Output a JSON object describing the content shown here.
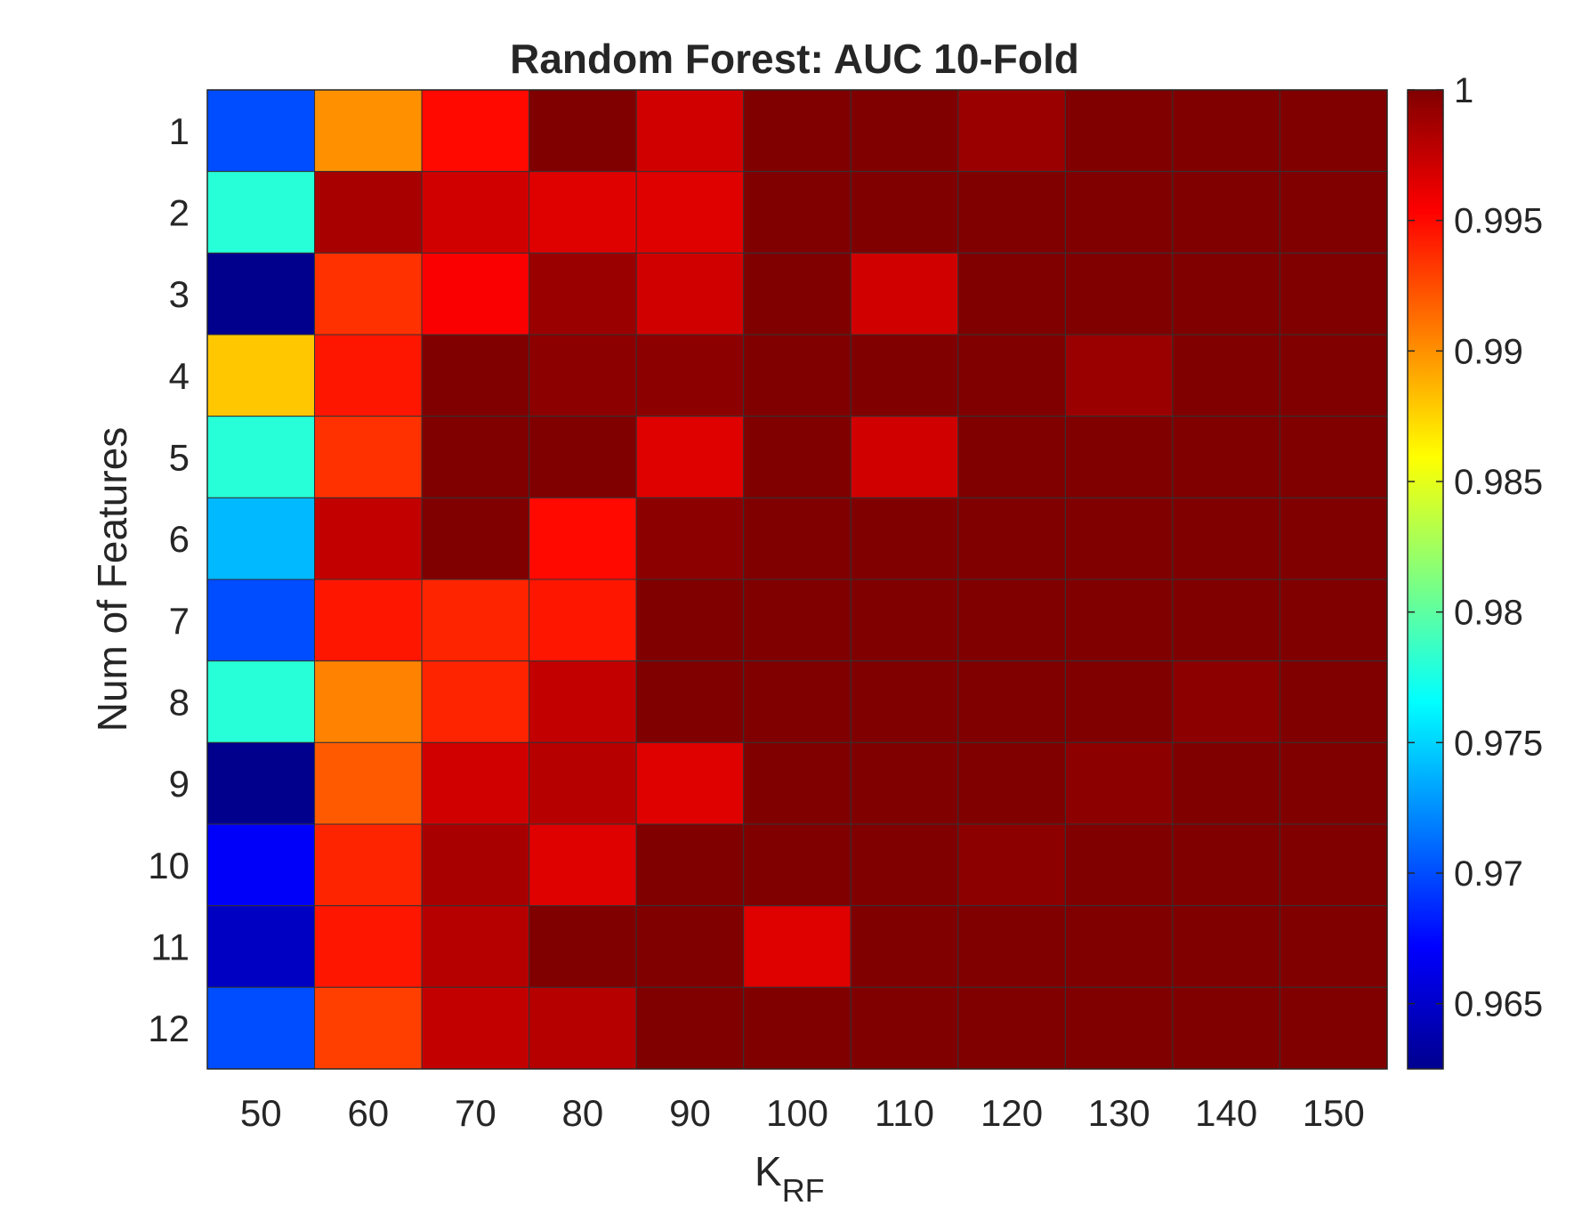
{
  "chart_data": {
    "type": "heatmap",
    "title": "Random Forest: AUC 10-Fold",
    "xlabel_main": "K",
    "xlabel_sub": "RF",
    "ylabel": "Num of Features",
    "x": [
      "50",
      "60",
      "70",
      "80",
      "90",
      "100",
      "110",
      "120",
      "130",
      "140",
      "150"
    ],
    "y": [
      "1",
      "2",
      "3",
      "4",
      "5",
      "6",
      "7",
      "8",
      "9",
      "10",
      "11",
      "12"
    ],
    "values": [
      [
        0.97,
        0.99,
        0.995,
        1.0,
        0.997,
        1.0,
        1.0,
        0.999,
        1.0,
        1.0,
        1.0
      ],
      [
        0.978,
        0.9985,
        0.997,
        0.9965,
        0.9965,
        1.0,
        1.0,
        1.0,
        1.0,
        1.0,
        1.0
      ],
      [
        0.963,
        0.9935,
        0.9955,
        0.999,
        0.997,
        1.0,
        0.997,
        1.0,
        1.0,
        1.0,
        1.0
      ],
      [
        0.988,
        0.9945,
        1.0,
        0.9995,
        0.9995,
        1.0,
        1.0,
        1.0,
        0.999,
        1.0,
        1.0
      ],
      [
        0.978,
        0.9935,
        1.0,
        1.0,
        0.9965,
        1.0,
        0.997,
        1.0,
        1.0,
        1.0,
        1.0
      ],
      [
        0.974,
        0.9975,
        1.0,
        0.995,
        0.9995,
        1.0,
        1.0,
        1.0,
        1.0,
        1.0,
        1.0
      ],
      [
        0.97,
        0.9945,
        0.994,
        0.9945,
        1.0,
        1.0,
        1.0,
        1.0,
        1.0,
        1.0,
        1.0
      ],
      [
        0.978,
        0.9905,
        0.994,
        0.9975,
        1.0,
        1.0,
        1.0,
        1.0,
        1.0,
        0.9995,
        1.0
      ],
      [
        0.963,
        0.992,
        0.997,
        0.998,
        0.9965,
        1.0,
        1.0,
        1.0,
        0.9995,
        1.0,
        1.0
      ],
      [
        0.967,
        0.994,
        0.9985,
        0.9965,
        1.0,
        1.0,
        1.0,
        0.9995,
        1.0,
        1.0,
        1.0
      ],
      [
        0.965,
        0.9945,
        0.998,
        1.0,
        1.0,
        0.9965,
        1.0,
        1.0,
        1.0,
        1.0,
        1.0
      ],
      [
        0.97,
        0.993,
        0.9975,
        0.998,
        1.0,
        1.0,
        1.0,
        1.0,
        1.0,
        1.0,
        1.0
      ]
    ],
    "colormap": "jet",
    "clim": [
      0.9625,
      1.0
    ],
    "colorbar_ticks": [
      "0.965",
      "0.97",
      "0.975",
      "0.98",
      "0.985",
      "0.99",
      "0.995",
      "1"
    ],
    "colorbar_tick_values": [
      0.965,
      0.97,
      0.975,
      0.98,
      0.985,
      0.99,
      0.995,
      1.0
    ],
    "grid": true,
    "colorbar_placement": "right"
  }
}
